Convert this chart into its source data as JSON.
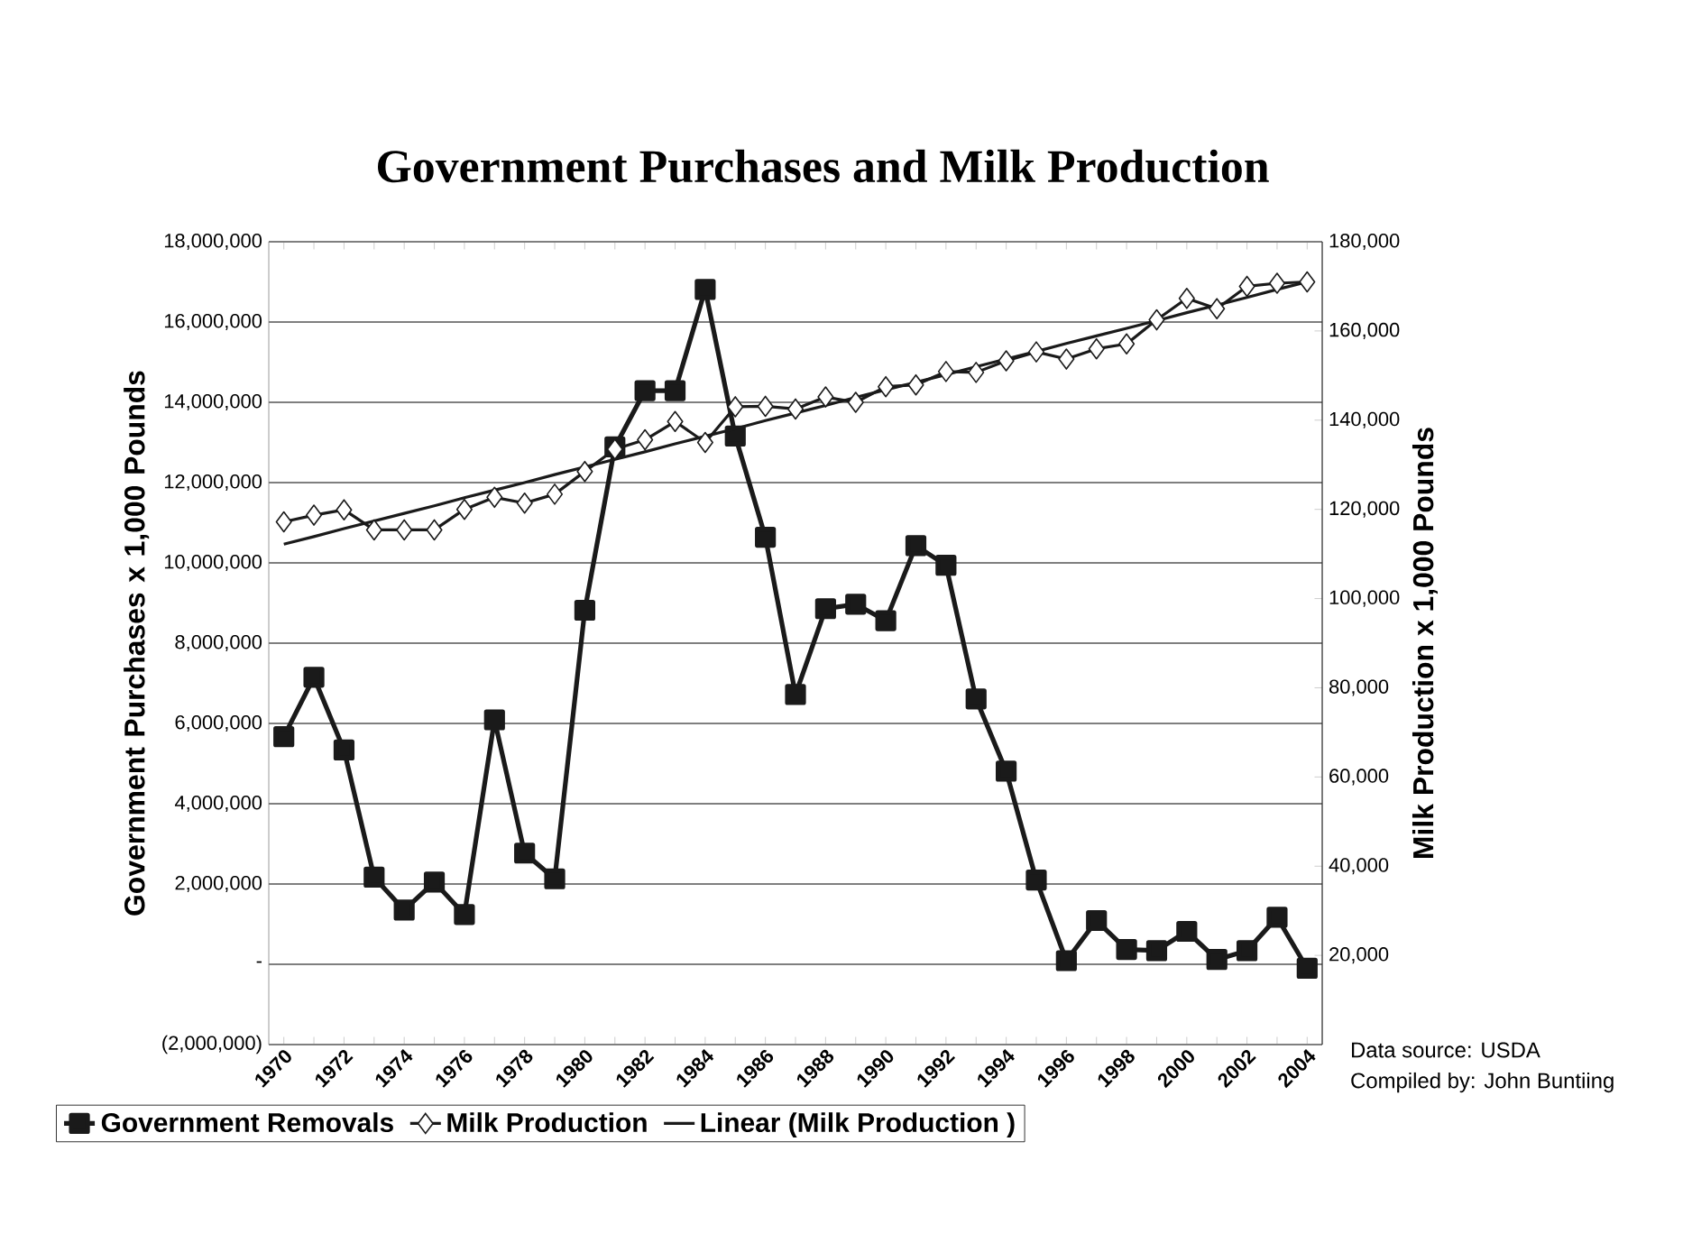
{
  "chart_data": {
    "type": "line",
    "title": "Government Purchases and Milk Production",
    "ylabel": "Government Purchases x 1,000 Pounds",
    "y2label": "Milk Production x 1,000 Pounds",
    "categories": [
      "1970",
      null,
      "1972",
      null,
      "1974",
      null,
      "1976",
      null,
      "1978",
      null,
      "1980",
      null,
      "1982",
      null,
      "1984",
      null,
      "1986",
      null,
      "1988",
      null,
      "1990",
      null,
      "1992",
      null,
      "1994",
      null,
      "1996",
      null,
      "1998",
      null,
      "2000",
      null,
      "2002",
      null,
      "2004"
    ],
    "series": [
      {
        "name": "Government Removals",
        "color": "#1a1a1a",
        "marker": "square",
        "values": [
          5670000,
          7150000,
          5340000,
          2170000,
          1350000,
          2050000,
          1240000,
          6090000,
          2770000,
          2130000,
          8820000,
          12890000,
          14290000,
          14290000,
          16810000,
          13160000,
          10640000,
          6720000,
          8860000,
          8970000,
          8560000,
          10430000,
          9940000,
          6610000,
          4810000,
          2100000,
          90000,
          1090000,
          370000,
          340000,
          820000,
          120000,
          340000,
          1170000,
          -100000
        ]
      },
      {
        "name": "Milk Production",
        "color": "#1a1a1a",
        "marker": "diamond",
        "axis": "y2",
        "values": [
          117200,
          118700,
          119900,
          115400,
          115400,
          115400,
          120000,
          122700,
          121400,
          123400,
          128500,
          133500,
          135600,
          139700,
          135000,
          143000,
          143100,
          142500,
          145200,
          144000,
          147500,
          147900,
          150900,
          150700,
          153300,
          155300,
          153700,
          156000,
          157100,
          162500,
          167300,
          165000,
          170000,
          170700,
          171000
        ]
      },
      {
        "name": "Linear (Milk Production )",
        "color": "#1a1a1a",
        "marker": "none",
        "axis": "y2",
        "values": [
          112200,
          113900,
          115700,
          117400,
          119100,
          120800,
          122600,
          124300,
          126000,
          127800,
          129500,
          131200,
          132900,
          134700,
          136400,
          138100,
          139900,
          141600,
          143300,
          145100,
          146800,
          148500,
          150200,
          152000,
          153700,
          155400,
          157200,
          158900,
          160600,
          162300,
          164100,
          165800,
          167500,
          169300,
          171000
        ]
      }
    ],
    "ylim": [
      -2000000,
      18000000
    ],
    "yticks": [
      {
        "value": -2000000,
        "label": "(2,000,000)"
      },
      {
        "value": 0,
        "label": "-"
      },
      {
        "value": 2000000,
        "label": "2,000,000"
      },
      {
        "value": 4000000,
        "label": "4,000,000"
      },
      {
        "value": 6000000,
        "label": "6,000,000"
      },
      {
        "value": 8000000,
        "label": "8,000,000"
      },
      {
        "value": 10000000,
        "label": "10,000,000"
      },
      {
        "value": 12000000,
        "label": "12,000,000"
      },
      {
        "value": 14000000,
        "label": "14,000,000"
      },
      {
        "value": 16000000,
        "label": "16,000,000"
      },
      {
        "value": 18000000,
        "label": "18,000,000"
      }
    ],
    "y2lim": [
      0,
      180000
    ],
    "y2ticks": [
      {
        "value": 0,
        "label": null
      },
      {
        "value": 20000,
        "label": "20,000"
      },
      {
        "value": 40000,
        "label": "40,000"
      },
      {
        "value": 60000,
        "label": "60,000"
      },
      {
        "value": 80000,
        "label": "80,000"
      },
      {
        "value": 100000,
        "label": "100,000"
      },
      {
        "value": 120000,
        "label": "120,000"
      },
      {
        "value": 140000,
        "label": "140,000"
      },
      {
        "value": 160000,
        "label": "160,000"
      },
      {
        "value": 180000,
        "label": "180,000"
      }
    ],
    "grid": "y",
    "legend": "bottom",
    "annotations": [
      "Data source: USDA",
      "Compiled by: John Buntiing"
    ]
  }
}
